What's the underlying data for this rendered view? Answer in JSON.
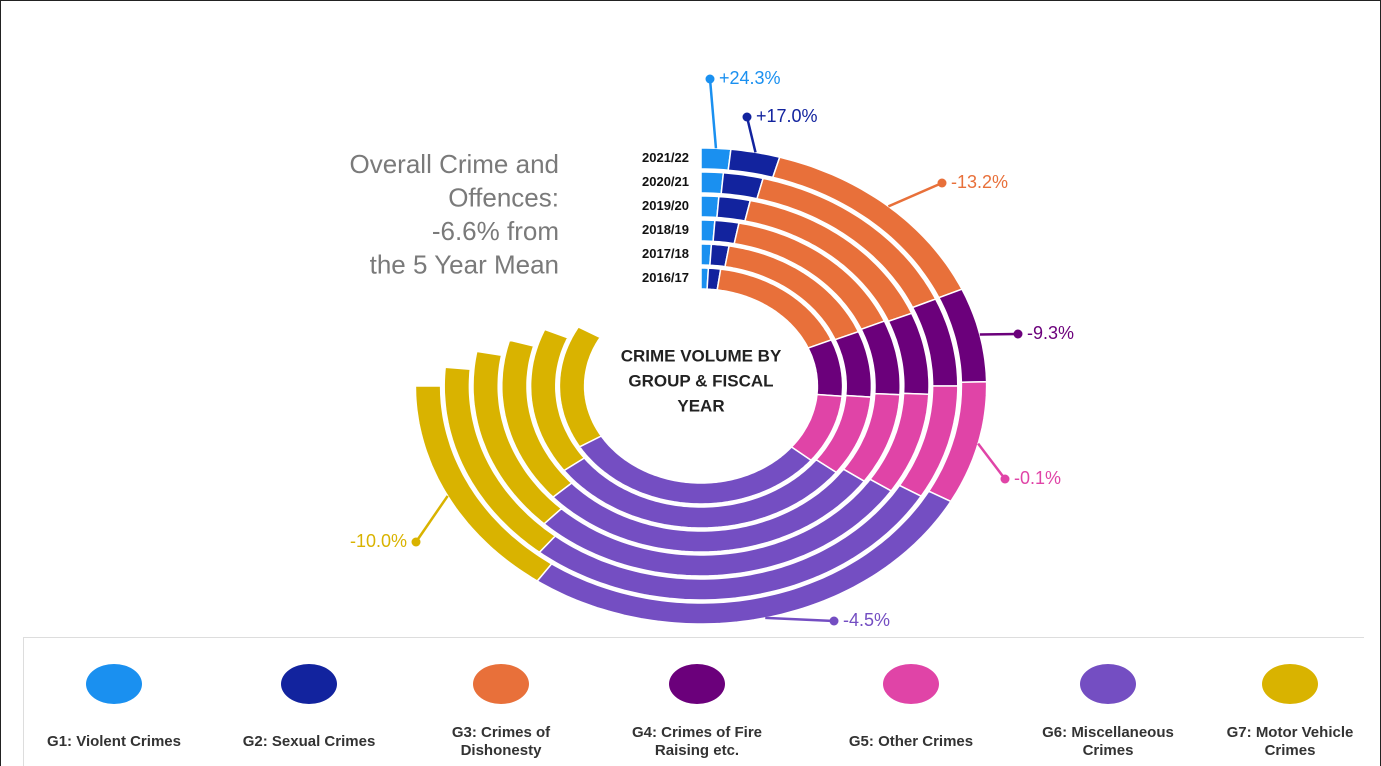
{
  "chart_data": {
    "type": "radial_bar",
    "title": [
      "Overall Crime and",
      "Offences:",
      "-6.6% from",
      "the 5 Year Mean"
    ],
    "center_title": [
      "CRIME VOLUME BY",
      "GROUP & FISCAL",
      "YEAR"
    ],
    "categories": [
      "2016/17",
      "2017/18",
      "2018/19",
      "2019/20",
      "2020/21",
      "2021/22"
    ],
    "series": [
      {
        "name": "G1: Violent Crimes",
        "color": "#1a90f0",
        "values": [
          3,
          3.5,
          4,
          4.5,
          5,
          6
        ],
        "change_label": "+24.3%"
      },
      {
        "name": "G2: Sexual Crimes",
        "color": "#12239e",
        "values": [
          5,
          6,
          7,
          8,
          9,
          10
        ],
        "change_label": "+17.0%"
      },
      {
        "name": "G3: Crimes of Dishonesty",
        "color": "#e8703a",
        "values": [
          59,
          58,
          56,
          55,
          52,
          50
        ],
        "change_label": "-13.2%"
      },
      {
        "name": "G4: Crimes of Fire Raising etc.",
        "color": "#6b007b",
        "values": [
          28,
          27,
          26,
          25,
          24,
          23
        ],
        "change_label": "-9.3%"
      },
      {
        "name": "G5: Other Crimes",
        "color": "#e044a7",
        "values": [
          34,
          33,
          32,
          31,
          31,
          30
        ],
        "change_label": "-0.1%"
      },
      {
        "name": "G6: Miscellaneous Crimes",
        "color": "#744ec2",
        "values": [
          110,
          106,
          103,
          100,
          98,
          96
        ],
        "change_label": "-4.5%"
      },
      {
        "name": "G7: Motor Vehicle Crimes",
        "color": "#d9b300",
        "values": [
          61,
          60,
          58,
          57,
          56,
          55
        ],
        "change_label": "-10.0%"
      }
    ]
  }
}
